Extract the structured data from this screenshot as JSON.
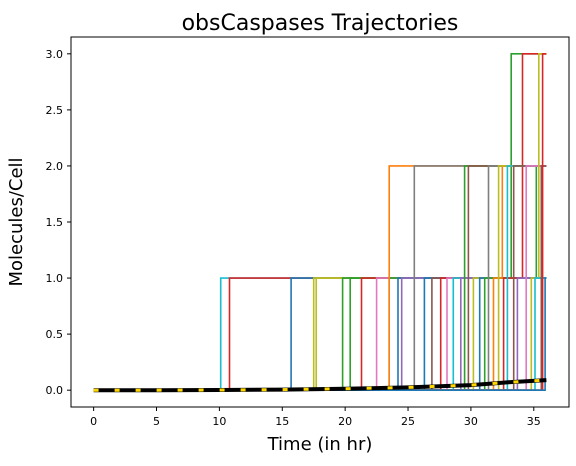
{
  "chart_data": {
    "type": "line",
    "title": "obsCaspases Trajectories",
    "xlabel": "Time (in hr)",
    "ylabel": "Molecules/Cell",
    "xlim": [
      -1.8,
      37.8
    ],
    "ylim": [
      -0.15,
      3.15
    ],
    "x_ticks": [
      0,
      5,
      10,
      15,
      20,
      25,
      30,
      35
    ],
    "y_ticks": [
      0.0,
      0.5,
      1.0,
      1.5,
      2.0,
      2.5,
      3.0
    ],
    "x_tick_labels": [
      "0",
      "5",
      "10",
      "15",
      "20",
      "25",
      "30",
      "35"
    ],
    "y_tick_labels": [
      "0.0",
      "0.5",
      "1.0",
      "1.5",
      "2.0",
      "2.5",
      "3.0"
    ],
    "grid": false,
    "legend": "none",
    "colors": [
      "#1f77b4",
      "#ff7f0e",
      "#2ca02c",
      "#d62728",
      "#9467bd",
      "#8c564b",
      "#e377c2",
      "#7f7f7f",
      "#bcbd22",
      "#17becf"
    ],
    "t_end": 36.0,
    "series": [
      {
        "steps": [
          [
            10.1,
            1
          ]
        ],
        "color": "#17becf"
      },
      {
        "steps": [
          [
            10.8,
            1
          ]
        ],
        "color": "#d62728"
      },
      {
        "steps": [
          [
            15.7,
            1
          ]
        ],
        "color": "#1f77b4"
      },
      {
        "steps": [
          [
            17.5,
            1
          ]
        ],
        "color": "#bcbd22"
      },
      {
        "steps": [
          [
            17.7,
            1
          ]
        ],
        "color": "#bcbd22"
      },
      {
        "steps": [
          [
            19.8,
            1
          ]
        ],
        "color": "#2ca02c"
      },
      {
        "steps": [
          [
            20.4,
            1
          ]
        ],
        "color": "#2ca02c"
      },
      {
        "steps": [
          [
            21.3,
            1
          ]
        ],
        "color": "#d62728"
      },
      {
        "steps": [
          [
            22.5,
            1
          ]
        ],
        "color": "#e377c2"
      },
      {
        "steps": [
          [
            23.5,
            1
          ],
          [
            35.2,
            2
          ]
        ],
        "color": "#2ca02c"
      },
      {
        "steps": [
          [
            23.5,
            2
          ]
        ],
        "color": "#ff7f0e"
      },
      {
        "steps": [
          [
            24.2,
            1
          ]
        ],
        "color": "#1f77b4"
      },
      {
        "steps": [
          [
            24.5,
            1
          ]
        ],
        "color": "#9467bd"
      },
      {
        "steps": [
          [
            25.5,
            2
          ]
        ],
        "color": "#7f7f7f"
      },
      {
        "steps": [
          [
            26.3,
            1
          ]
        ],
        "color": "#1f77b4"
      },
      {
        "steps": [
          [
            26.9,
            1
          ]
        ],
        "color": "#8c564b"
      },
      {
        "steps": [
          [
            27.6,
            1
          ]
        ],
        "color": "#d62728"
      },
      {
        "steps": [
          [
            28.1,
            1
          ]
        ],
        "color": "#e377c2"
      },
      {
        "steps": [
          [
            28.6,
            1
          ]
        ],
        "color": "#17becf"
      },
      {
        "steps": [
          [
            29.2,
            1
          ]
        ],
        "color": "#9467bd"
      },
      {
        "steps": [
          [
            29.5,
            2
          ]
        ],
        "color": "#2ca02c"
      },
      {
        "steps": [
          [
            29.8,
            2
          ]
        ],
        "color": "#8c564b"
      },
      {
        "steps": [
          [
            30.2,
            1
          ]
        ],
        "color": "#bcbd22"
      },
      {
        "steps": [
          [
            30.7,
            1
          ]
        ],
        "color": "#1f77b4"
      },
      {
        "steps": [
          [
            31.1,
            1
          ],
          [
            33.2,
            3
          ]
        ],
        "color": "#2ca02c"
      },
      {
        "steps": [
          [
            31.4,
            2
          ]
        ],
        "color": "#7f7f7f"
      },
      {
        "steps": [
          [
            31.8,
            1
          ],
          [
            32.5,
            2
          ]
        ],
        "color": "#ff7f0e"
      },
      {
        "steps": [
          [
            32.2,
            2
          ]
        ],
        "color": "#bcbd22"
      },
      {
        "steps": [
          [
            32.6,
            1
          ],
          [
            34.1,
            3
          ]
        ],
        "color": "#d62728"
      },
      {
        "steps": [
          [
            32.9,
            2
          ]
        ],
        "color": "#17becf"
      },
      {
        "steps": [
          [
            33.4,
            2
          ]
        ],
        "color": "#8c564b"
      },
      {
        "steps": [
          [
            33.7,
            1
          ]
        ],
        "color": "#9467bd"
      },
      {
        "steps": [
          [
            34.4,
            2
          ]
        ],
        "color": "#e377c2"
      },
      {
        "steps": [
          [
            34.8,
            1
          ],
          [
            35.4,
            3
          ]
        ],
        "color": "#bcbd22"
      },
      {
        "steps": [
          [
            35.1,
            1
          ]
        ],
        "color": "#17becf"
      },
      {
        "steps": [
          [
            35.6,
            2
          ]
        ],
        "color": "#8c564b"
      },
      {
        "steps": [
          [
            35.7,
            3
          ]
        ],
        "color": "#d62728"
      },
      {
        "steps": [
          [
            35.9,
            1
          ]
        ],
        "color": "#1f77b4"
      }
    ],
    "mean": {
      "x": [
        0,
        5,
        10,
        15,
        20,
        25,
        30,
        33,
        36
      ],
      "y": [
        0.0,
        0.0,
        0.002,
        0.005,
        0.013,
        0.025,
        0.045,
        0.07,
        0.09
      ],
      "color": "#000000",
      "dash_color": "#ffd700"
    }
  }
}
